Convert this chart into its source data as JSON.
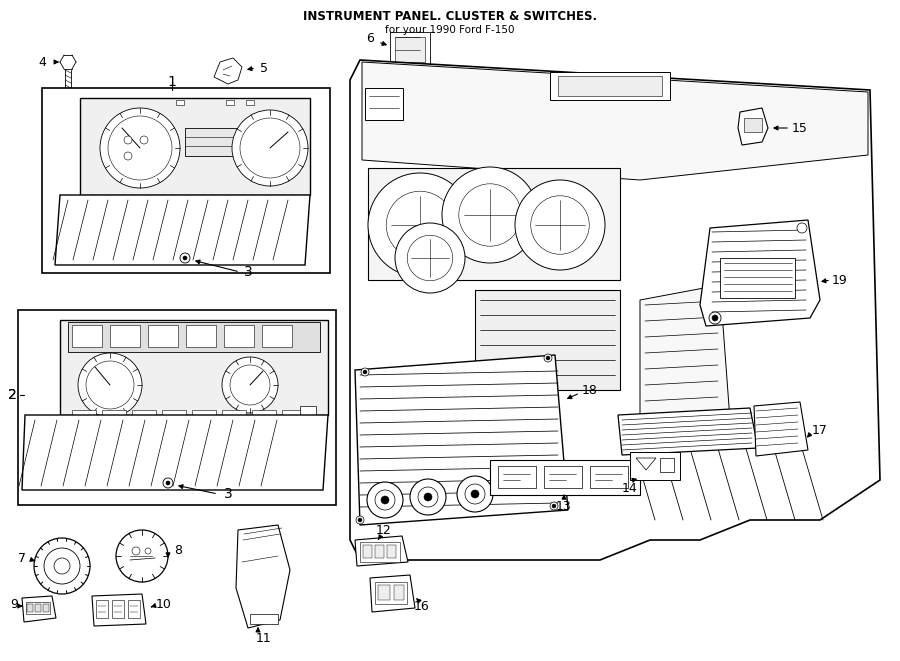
{
  "title": "INSTRUMENT PANEL. CLUSTER & SWITCHES.",
  "subtitle": "for your 1990 Ford F-150",
  "bg": "#ffffff",
  "lc": "#000000",
  "fig_w": 9.0,
  "fig_h": 6.61,
  "dpi": 100
}
